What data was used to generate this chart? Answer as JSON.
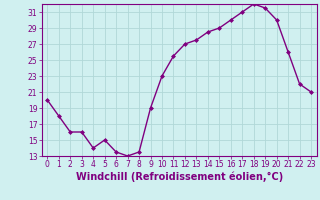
{
  "x": [
    0,
    1,
    2,
    3,
    4,
    5,
    6,
    7,
    8,
    9,
    10,
    11,
    12,
    13,
    14,
    15,
    16,
    17,
    18,
    19,
    20,
    21,
    22,
    23
  ],
  "y": [
    20,
    18,
    16,
    16,
    14,
    15,
    13.5,
    13,
    13.5,
    19,
    23,
    25.5,
    27,
    27.5,
    28.5,
    29,
    30,
    31,
    32,
    31.5,
    30,
    26,
    22,
    21
  ],
  "line_color": "#800080",
  "marker": "D",
  "marker_size": 2.0,
  "bg_color": "#d0f0f0",
  "grid_color": "#b0d8d8",
  "xlabel": "Windchill (Refroidissement éolien,°C)",
  "ylim": [
    13,
    32
  ],
  "xlim_left": -0.5,
  "xlim_right": 23.5,
  "yticks": [
    13,
    15,
    17,
    19,
    21,
    23,
    25,
    27,
    29,
    31
  ],
  "xticks": [
    0,
    1,
    2,
    3,
    4,
    5,
    6,
    7,
    8,
    9,
    10,
    11,
    12,
    13,
    14,
    15,
    16,
    17,
    18,
    19,
    20,
    21,
    22,
    23
  ],
  "tick_label_fontsize": 5.5,
  "xlabel_fontsize": 7.0,
  "line_width": 1.0
}
